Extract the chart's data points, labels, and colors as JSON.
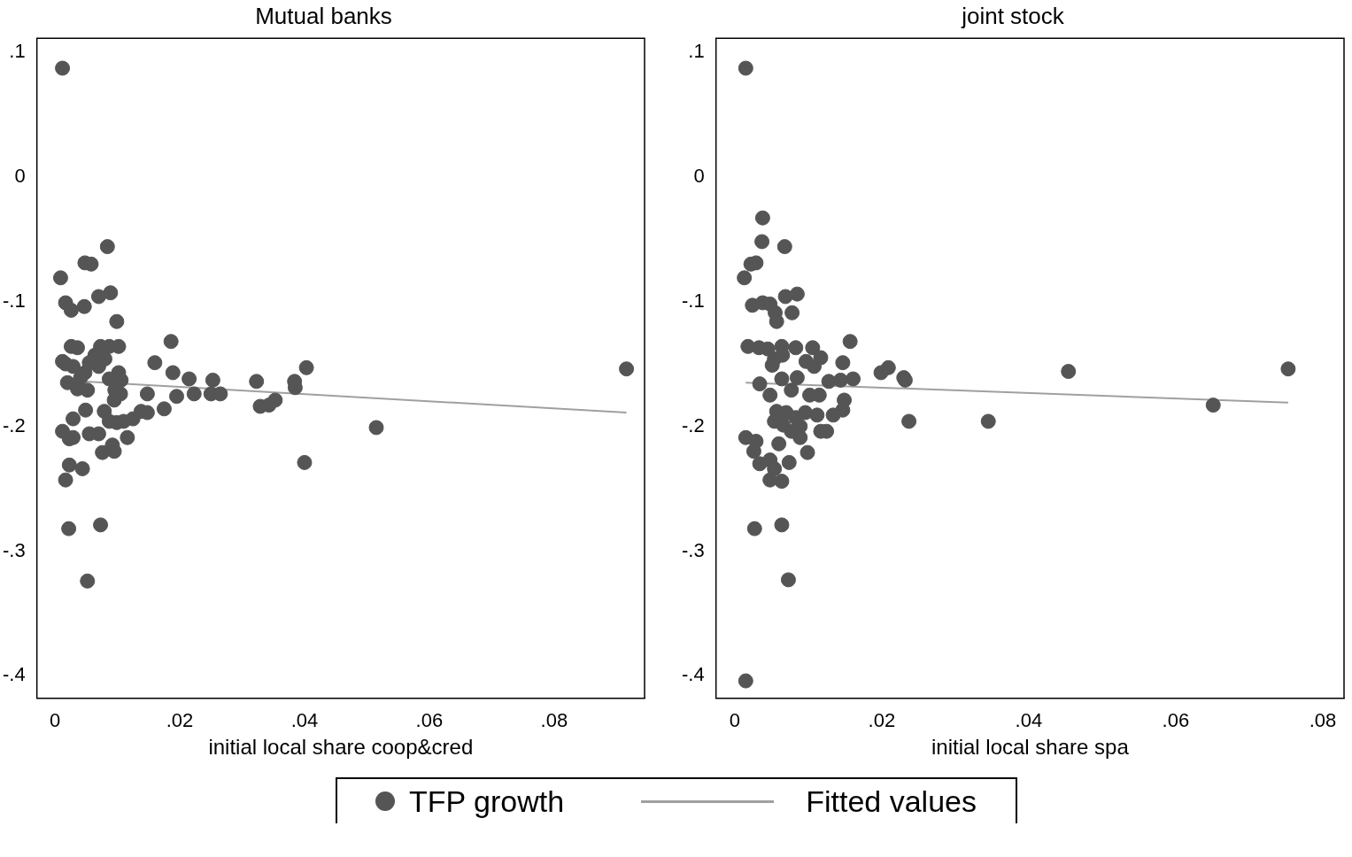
{
  "chart_data": [
    {
      "type": "scatter",
      "title": "Mutual banks",
      "xlabel": "initial local share coop&cred",
      "legend": "bottom",
      "grid": false,
      "xlim": [
        -0.0029,
        0.0945
      ],
      "ylim": [
        -0.418,
        0.111
      ],
      "xticks": [
        0,
        {
          "value": 0.02,
          "label": ".02"
        },
        {
          "value": 0.04,
          "label": ".04"
        },
        {
          "value": 0.06,
          "label": ".06"
        },
        {
          "value": 0.08,
          "label": ".08"
        }
      ],
      "yticks": [
        {
          "value": -0.4,
          "label": "-.4"
        },
        {
          "value": -0.3,
          "label": "-.3"
        },
        {
          "value": -0.2,
          "label": "-.2"
        },
        {
          "value": -0.1,
          "label": "-.1"
        },
        0,
        {
          "value": 0.1,
          "label": ".1"
        }
      ],
      "series": [
        {
          "name": "TFP growth",
          "marker": "circle",
          "color": "#555555",
          "x": [
            0.0012,
            0.0009,
            0.0017,
            0.0026,
            0.0047,
            0.0048,
            0.0058,
            0.0084,
            0.007,
            0.0089,
            0.0099,
            0.0012,
            0.0026,
            0.0036,
            0.0017,
            0.0029,
            0.0041,
            0.002,
            0.0036,
            0.0052,
            0.0048,
            0.0055,
            0.0064,
            0.0073,
            0.0087,
            0.0102,
            0.007,
            0.008,
            0.0102,
            0.0106,
            0.0087,
            0.0096,
            0.0105,
            0.0079,
            0.0049,
            0.0029,
            0.0012,
            0.0023,
            0.0029,
            0.0055,
            0.007,
            0.0087,
            0.0099,
            0.011,
            0.0125,
            0.0138,
            0.0148,
            0.0116,
            0.0095,
            0.0076,
            0.0095,
            0.0092,
            0.0023,
            0.0044,
            0.0017,
            0.0022,
            0.0073,
            0.0052,
            0.0186,
            0.016,
            0.0189,
            0.0215,
            0.0253,
            0.0148,
            0.0175,
            0.0195,
            0.0223,
            0.025,
            0.0265,
            0.0323,
            0.0329,
            0.0343,
            0.0353,
            0.0384,
            0.0385,
            0.0403,
            0.04,
            0.0515,
            0.0916
          ],
          "values": [
            0.087,
            -0.081,
            -0.101,
            -0.107,
            -0.104,
            -0.069,
            -0.07,
            -0.056,
            -0.096,
            -0.093,
            -0.116,
            -0.148,
            -0.136,
            -0.137,
            -0.15,
            -0.152,
            -0.161,
            -0.165,
            -0.17,
            -0.171,
            -0.157,
            -0.149,
            -0.143,
            -0.136,
            -0.136,
            -0.136,
            -0.152,
            -0.146,
            -0.157,
            -0.163,
            -0.162,
            -0.171,
            -0.174,
            -0.188,
            -0.187,
            -0.194,
            -0.204,
            -0.21,
            -0.209,
            -0.206,
            -0.206,
            -0.196,
            -0.197,
            -0.196,
            -0.194,
            -0.188,
            -0.189,
            -0.209,
            -0.179,
            -0.221,
            -0.22,
            -0.215,
            -0.231,
            -0.234,
            -0.243,
            -0.282,
            -0.279,
            -0.324,
            -0.132,
            -0.149,
            -0.157,
            -0.162,
            -0.163,
            -0.174,
            -0.186,
            -0.176,
            -0.174,
            -0.174,
            -0.174,
            -0.164,
            -0.184,
            -0.183,
            -0.179,
            -0.164,
            -0.169,
            -0.153,
            -0.229,
            -0.201,
            -0.154
          ]
        },
        {
          "name": "Fitted values",
          "type": "line",
          "color": "#a0a0a0",
          "x": [
            0.0012,
            0.0916
          ],
          "values": [
            -0.163,
            -0.189
          ]
        }
      ]
    },
    {
      "type": "scatter",
      "title": "joint stock",
      "xlabel": "initial local share spa",
      "grid": false,
      "xlim": [
        -0.00255,
        0.0829
      ],
      "ylim": [
        -0.418,
        0.111
      ],
      "xticks": [
        0,
        {
          "value": 0.02,
          "label": ".02"
        },
        {
          "value": 0.04,
          "label": ".04"
        },
        {
          "value": 0.06,
          "label": ".06"
        },
        {
          "value": 0.08,
          "label": ".08"
        }
      ],
      "yticks": [
        {
          "value": -0.4,
          "label": "-.4"
        },
        {
          "value": -0.3,
          "label": "-.3"
        },
        {
          "value": -0.2,
          "label": "-.2"
        },
        {
          "value": -0.1,
          "label": "-.1"
        },
        0,
        {
          "value": 0.1,
          "label": ".1"
        }
      ],
      "series": [
        {
          "marker": "circle",
          "color": "#555555",
          "x": [
            0.0015,
            0.0015,
            0.0038,
            0.0037,
            0.0022,
            0.0029,
            0.0013,
            0.0024,
            0.0038,
            0.0048,
            0.0055,
            0.0057,
            0.0069,
            0.0085,
            0.0078,
            0.0068,
            0.0018,
            0.0033,
            0.0045,
            0.0064,
            0.0083,
            0.0106,
            0.0117,
            0.0054,
            0.0051,
            0.0065,
            0.0097,
            0.0108,
            0.0147,
            0.0157,
            0.0034,
            0.0064,
            0.0077,
            0.0085,
            0.0102,
            0.0115,
            0.0128,
            0.0144,
            0.0161,
            0.0149,
            0.0147,
            0.0134,
            0.0048,
            0.0057,
            0.007,
            0.0083,
            0.0096,
            0.0112,
            0.0054,
            0.0066,
            0.0077,
            0.0089,
            0.0117,
            0.0125,
            0.006,
            0.0089,
            0.0099,
            0.0074,
            0.0015,
            0.0029,
            0.0026,
            0.0034,
            0.0048,
            0.0054,
            0.0048,
            0.0064,
            0.0027,
            0.0064,
            0.0073,
            0.0199,
            0.0209,
            0.023,
            0.0232,
            0.0237,
            0.0345,
            0.0454,
            0.0651,
            0.0753
          ],
          "values": [
            0.087,
            -0.404,
            -0.033,
            -0.052,
            -0.07,
            -0.069,
            -0.081,
            -0.103,
            -0.101,
            -0.102,
            -0.109,
            -0.116,
            -0.096,
            -0.094,
            -0.109,
            -0.056,
            -0.136,
            -0.137,
            -0.138,
            -0.136,
            -0.137,
            -0.137,
            -0.145,
            -0.146,
            -0.151,
            -0.143,
            -0.148,
            -0.152,
            -0.149,
            -0.132,
            -0.166,
            -0.162,
            -0.171,
            -0.161,
            -0.175,
            -0.175,
            -0.164,
            -0.163,
            -0.162,
            -0.179,
            -0.187,
            -0.191,
            -0.175,
            -0.188,
            -0.189,
            -0.193,
            -0.189,
            -0.191,
            -0.196,
            -0.199,
            -0.204,
            -0.2,
            -0.204,
            -0.204,
            -0.214,
            -0.209,
            -0.221,
            -0.229,
            -0.209,
            -0.212,
            -0.22,
            -0.23,
            -0.227,
            -0.234,
            -0.243,
            -0.244,
            -0.282,
            -0.279,
            -0.323,
            -0.157,
            -0.153,
            -0.161,
            -0.163,
            -0.196,
            -0.196,
            -0.156,
            -0.183,
            -0.154
          ]
        },
        {
          "type": "line",
          "color": "#a0a0a0",
          "x": [
            0.0015,
            0.0753
          ],
          "values": [
            -0.165,
            -0.181
          ]
        }
      ]
    }
  ]
}
